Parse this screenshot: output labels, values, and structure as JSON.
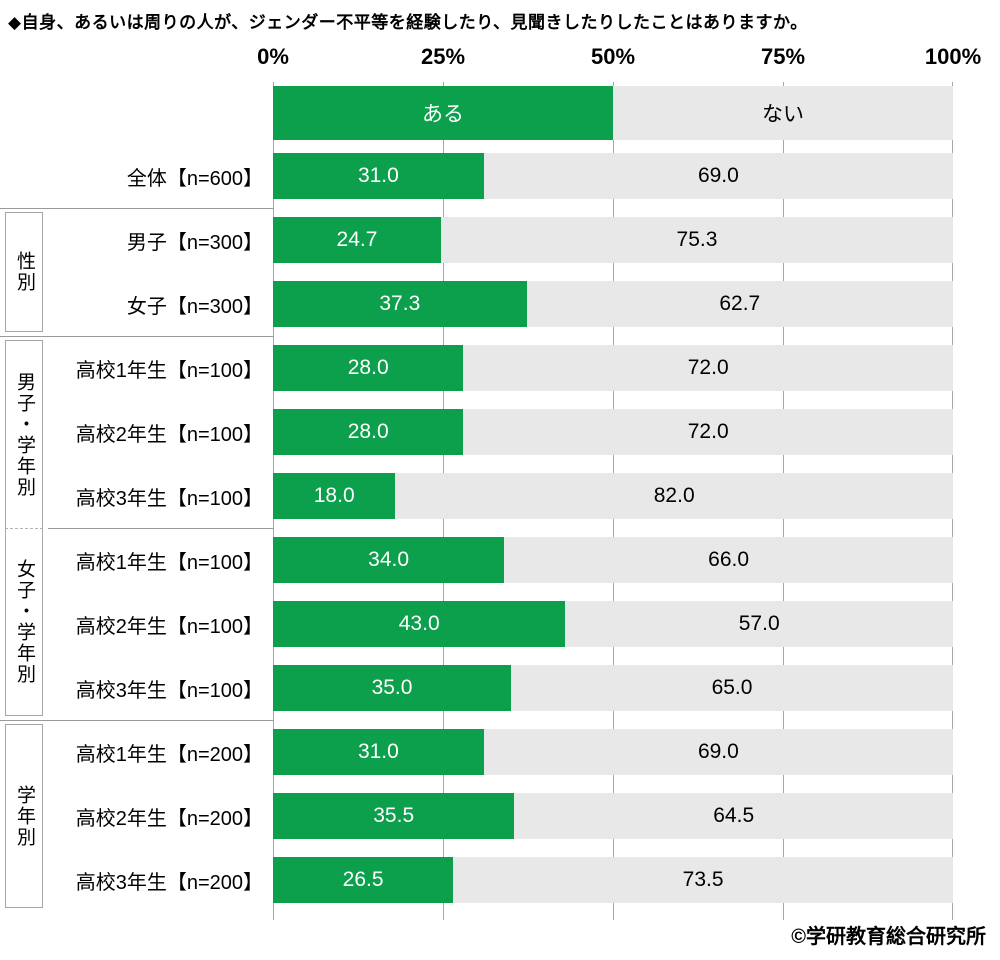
{
  "title": "◆自身、あるいは周りの人が、ジェンダー不平等を経験したり、見聞きしたりしたことはありますか。",
  "footer": "©学研教育総合研究所",
  "axis": {
    "ticks": [
      "0%",
      "25%",
      "50%",
      "75%",
      "100%"
    ]
  },
  "legend": {
    "yes": "ある",
    "no": "ない"
  },
  "colors": {
    "yes": "#0ca04d",
    "no": "#e8e8e8",
    "grid": "#a6a6a6",
    "separator": "#999999",
    "dashed_divider": "#b3b3b3",
    "yes_text": "#ffffff",
    "no_text": "#000000"
  },
  "chart_data": {
    "type": "bar",
    "stacked": true,
    "orientation": "horizontal",
    "unit": "%",
    "xlim": [
      0,
      100
    ],
    "xticks": [
      0,
      25,
      50,
      75,
      100
    ],
    "grid": true,
    "legend_position": "top",
    "series_names": [
      "ある",
      "ない"
    ],
    "sections": [
      {
        "group": null,
        "rows": [
          {
            "label": "全体【n=600】",
            "yes": 31.0,
            "no": 69.0
          }
        ]
      },
      {
        "group": "性別",
        "rows": [
          {
            "label": "男子【n=300】",
            "yes": 24.7,
            "no": 75.3
          },
          {
            "label": "女子【n=300】",
            "yes": 37.3,
            "no": 62.7
          }
        ]
      },
      {
        "group": "男子・学年別",
        "merge_next": true,
        "rows": [
          {
            "label": "高校1年生【n=100】",
            "yes": 28.0,
            "no": 72.0
          },
          {
            "label": "高校2年生【n=100】",
            "yes": 28.0,
            "no": 72.0
          },
          {
            "label": "高校3年生【n=100】",
            "yes": 18.0,
            "no": 82.0
          }
        ]
      },
      {
        "group": "女子・学年別",
        "merged_with_prev": true,
        "rows": [
          {
            "label": "高校1年生【n=100】",
            "yes": 34.0,
            "no": 66.0
          },
          {
            "label": "高校2年生【n=100】",
            "yes": 43.0,
            "no": 57.0
          },
          {
            "label": "高校3年生【n=100】",
            "yes": 35.0,
            "no": 65.0
          }
        ]
      },
      {
        "group": "学年別",
        "rows": [
          {
            "label": "高校1年生【n=200】",
            "yes": 31.0,
            "no": 69.0
          },
          {
            "label": "高校2年生【n=200】",
            "yes": 35.5,
            "no": 64.5
          },
          {
            "label": "高校3年生【n=200】",
            "yes": 26.5,
            "no": 73.5
          }
        ]
      }
    ]
  }
}
